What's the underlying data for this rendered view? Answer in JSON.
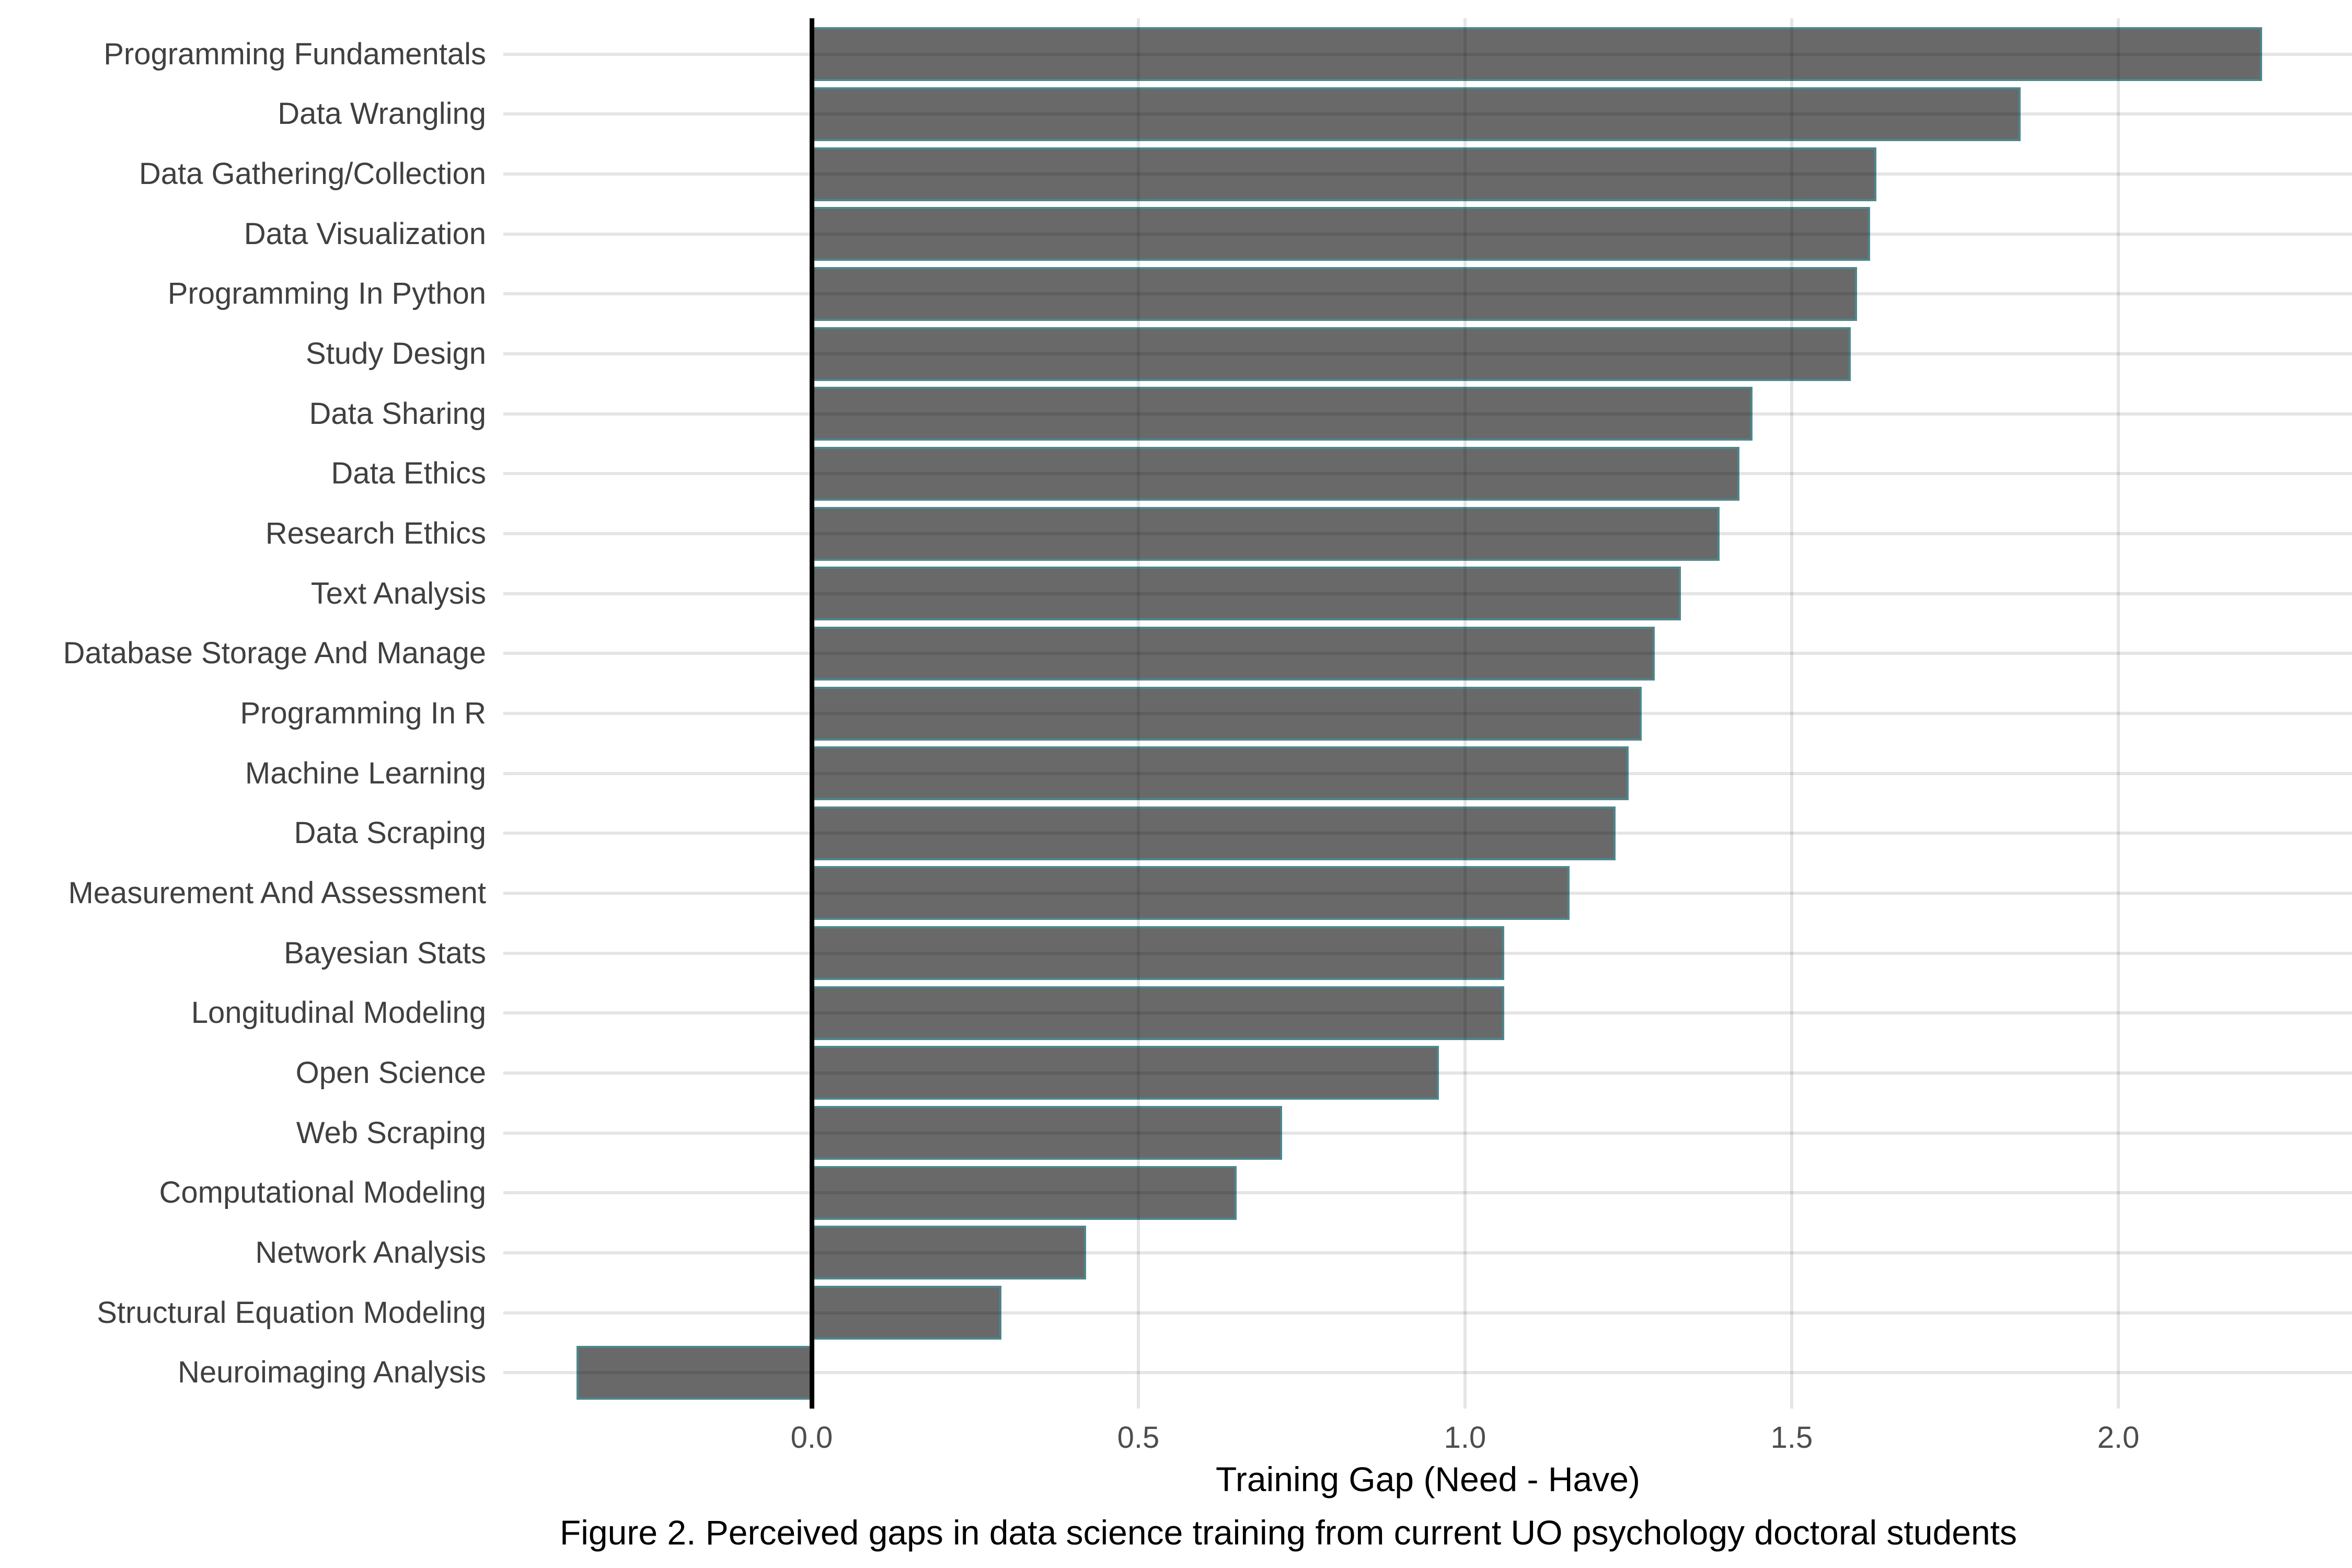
{
  "figure": {
    "caption": "Figure 2. Perceived gaps in data science training from current UO psychology doctoral students"
  },
  "chart_data": {
    "type": "bar",
    "orientation": "horizontal",
    "title": "",
    "xlabel": "Training Gap (Need - Have)",
    "ylabel": "",
    "categories": [
      "Programming Fundamentals",
      "Data Wrangling",
      "Data Gathering/Collection",
      "Data Visualization",
      "Programming In Python",
      "Study Design",
      "Data Sharing",
      "Data Ethics",
      "Research Ethics",
      "Text Analysis",
      "Database Storage And Manage",
      "Programming In R",
      "Machine Learning",
      "Data Scraping",
      "Measurement And Assessment",
      "Bayesian Stats",
      "Longitudinal Modeling",
      "Open Science",
      "Web Scraping",
      "Computational Modeling",
      "Network Analysis",
      "Structural Equation Modeling",
      "Neuroimaging Analysis"
    ],
    "values": [
      2.22,
      1.85,
      1.63,
      1.62,
      1.6,
      1.59,
      1.44,
      1.42,
      1.39,
      1.33,
      1.29,
      1.27,
      1.25,
      1.23,
      1.16,
      1.06,
      1.06,
      0.96,
      0.72,
      0.65,
      0.42,
      0.29,
      -0.36
    ],
    "x_ticks": [
      0.0,
      0.5,
      1.0,
      1.5,
      2.0
    ],
    "x_tick_labels": [
      "0.0",
      "0.5",
      "1.0",
      "1.5",
      "2.0"
    ],
    "xlim": [
      -0.49,
      2.35
    ],
    "grid": "major-only",
    "legend": "none",
    "zero_line": true,
    "colors": {
      "bar_fill": "#696969",
      "bar_stroke": "#4D878C",
      "gridline_rgba": "rgba(0,0,0,0.10)",
      "zero_line": "#000000",
      "label_text": "#404040",
      "tick_text": "#4D4D4D",
      "axis_title_text": "#000000",
      "caption_text": "#000000"
    }
  }
}
